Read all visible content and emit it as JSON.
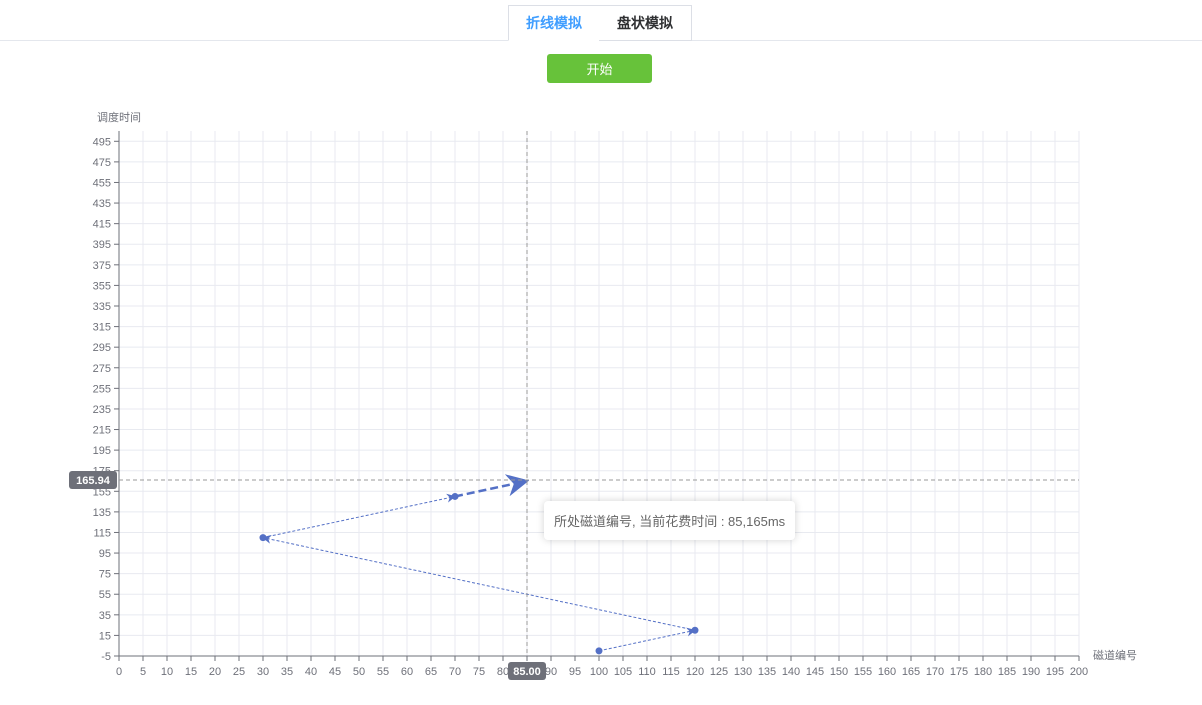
{
  "tabs": [
    {
      "label": "折线模拟",
      "active": true
    },
    {
      "label": "盘状模拟",
      "active": false
    }
  ],
  "start_button": {
    "label": "开始",
    "color": "#67c23a"
  },
  "tooltip": {
    "text": "所处磁道编号, 当前花费时间 : 85,165ms"
  },
  "chart_data": {
    "type": "line",
    "xlabel": "磁道编号",
    "ylabel": "调度时间",
    "xlim": [
      0,
      200
    ],
    "ylim": [
      -5,
      505
    ],
    "x_ticks": [
      0,
      5,
      10,
      15,
      20,
      25,
      30,
      35,
      40,
      45,
      50,
      55,
      60,
      65,
      70,
      75,
      80,
      85,
      90,
      95,
      100,
      105,
      110,
      115,
      120,
      125,
      130,
      135,
      140,
      145,
      150,
      155,
      160,
      165,
      170,
      175,
      180,
      185,
      190,
      195,
      200
    ],
    "y_ticks": [
      -5,
      15,
      35,
      55,
      75,
      95,
      115,
      135,
      155,
      175,
      195,
      215,
      235,
      255,
      275,
      295,
      315,
      335,
      355,
      375,
      395,
      415,
      435,
      455,
      475,
      495
    ],
    "grid": true,
    "series": [
      {
        "points": [
          [
            100,
            0
          ],
          [
            120,
            20
          ],
          [
            30,
            110
          ],
          [
            70,
            150
          ],
          [
            85,
            165
          ]
        ],
        "color": "#5470c6"
      }
    ],
    "crosshair": {
      "x": 85.0,
      "y": 165.94,
      "x_label": "85.00",
      "y_label": "165.94"
    },
    "colors": {
      "line": "#5470c6",
      "grid": "#e8eaf0",
      "axis": "#6e7079",
      "pointer_label_bg": "#6e7079"
    }
  }
}
